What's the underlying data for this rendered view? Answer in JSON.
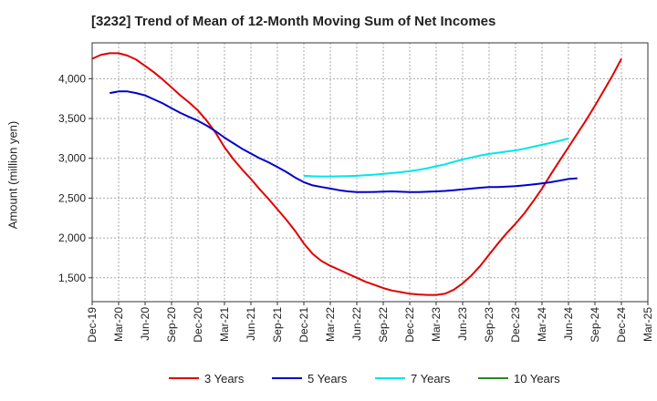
{
  "chart_data": {
    "type": "line",
    "title": "[3232]  Trend of Mean of 12-Month Moving Sum of Net Incomes",
    "xlabel": "",
    "ylabel": "Amount (million yen)",
    "x_tick_labels": [
      "Dec-19",
      "Mar-20",
      "Jun-20",
      "Sep-20",
      "Dec-20",
      "Mar-21",
      "Jun-21",
      "Sep-21",
      "Dec-21",
      "Mar-22",
      "Jun-22",
      "Sep-22",
      "Dec-22",
      "Mar-23",
      "Jun-23",
      "Sep-23",
      "Dec-23",
      "Mar-24",
      "Jun-24",
      "Sep-24",
      "Dec-24",
      "Mar-25"
    ],
    "y_ticks": [
      1500,
      2000,
      2500,
      3000,
      3500,
      4000
    ],
    "y_tick_labels": [
      "1,500",
      "2,000",
      "2,500",
      "3,000",
      "3,500",
      "4,000"
    ],
    "ylim": [
      1200,
      4450
    ],
    "grid": true,
    "legend_position": "bottom",
    "series": [
      {
        "name": "3 Years",
        "color": "#e00000",
        "start_index": 0,
        "values": [
          4250,
          4300,
          4320,
          4320,
          4290,
          4240,
          4160,
          4080,
          3990,
          3890,
          3790,
          3700,
          3600,
          3470,
          3320,
          3140,
          2990,
          2860,
          2740,
          2610,
          2490,
          2360,
          2230,
          2090,
          1930,
          1800,
          1710,
          1650,
          1600,
          1550,
          1500,
          1450,
          1410,
          1370,
          1340,
          1320,
          1300,
          1290,
          1285,
          1285,
          1300,
          1350,
          1430,
          1530,
          1650,
          1790,
          1930,
          2060,
          2180,
          2310,
          2460,
          2620,
          2800,
          2970,
          3140,
          3310,
          3480,
          3660,
          3850,
          4040,
          4250
        ]
      },
      {
        "name": "5 Years",
        "color": "#0000cc",
        "start_index": 2,
        "values": [
          3820,
          3840,
          3840,
          3820,
          3790,
          3740,
          3690,
          3630,
          3570,
          3520,
          3470,
          3410,
          3340,
          3260,
          3190,
          3120,
          3060,
          3000,
          2950,
          2890,
          2830,
          2760,
          2700,
          2660,
          2640,
          2620,
          2600,
          2585,
          2575,
          2575,
          2578,
          2582,
          2585,
          2580,
          2575,
          2575,
          2580,
          2585,
          2590,
          2600,
          2610,
          2620,
          2630,
          2638,
          2640,
          2645,
          2650,
          2660,
          2672,
          2685,
          2700,
          2720,
          2740,
          2750
        ]
      },
      {
        "name": "7 Years",
        "color": "#00e5ee",
        "start_index": 24,
        "values": [
          2780,
          2775,
          2772,
          2772,
          2775,
          2777,
          2780,
          2787,
          2795,
          2805,
          2815,
          2825,
          2840,
          2855,
          2875,
          2900,
          2925,
          2955,
          2985,
          3010,
          3035,
          3055,
          3070,
          3085,
          3100,
          3120,
          3145,
          3170,
          3195,
          3220,
          3250
        ]
      },
      {
        "name": "10 Years",
        "color": "#228b22",
        "start_index": 0,
        "values": []
      }
    ]
  }
}
